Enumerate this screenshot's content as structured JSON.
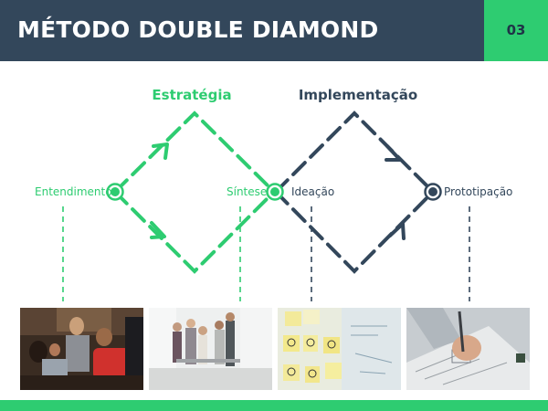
{
  "header": {
    "title": "MÉTODO DOUBLE DIAMOND",
    "page_number": "03"
  },
  "diagram": {
    "phases": [
      {
        "name": "Estratégia",
        "color": "#2ecc71"
      },
      {
        "name": "Implementação",
        "color": "#33475b"
      }
    ],
    "nodes": [
      {
        "label": "Entendimento"
      },
      {
        "label": "Síntese"
      },
      {
        "label": "Ideação"
      },
      {
        "label": "Prototipação"
      }
    ]
  },
  "photos": [
    {
      "name": "team-laptop-photo"
    },
    {
      "name": "office-meeting-photo"
    },
    {
      "name": "sticky-notes-sketches-photo"
    },
    {
      "name": "hand-sketching-photo"
    }
  ],
  "colors": {
    "primary_dark": "#33475b",
    "accent_green": "#2ecc71",
    "background": "#ffffff"
  }
}
